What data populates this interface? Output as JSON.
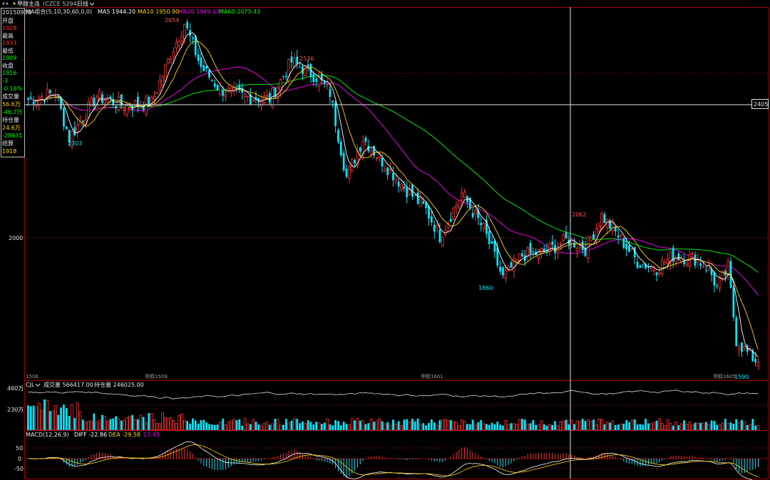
{
  "header": {
    "prefix_icon": "double-dot-icon",
    "title": "甲醇主连",
    "code": "(CZCE 5294)",
    "period": "日线",
    "period_icon": "chevron-down-icon"
  },
  "ma_legend": {
    "label": "MA组合(5,10,30,60,0,0)",
    "ma5": "MA5 1944.20",
    "ma10": "MA10 1950.90",
    "ma30": "MA30 1949.13",
    "ma60": "MA60 2073.43"
  },
  "colors": {
    "up": "#ff3232",
    "down": "#00e6ff",
    "ma5": "#ffffff",
    "ma10": "#ffd700",
    "ma30": "#ff00ff",
    "ma60": "#00ff00",
    "grid": "#8b0000",
    "frame": "#a00000"
  },
  "info_panel": {
    "date": "20150930",
    "open_label": "开盘",
    "open": "1928",
    "high_label": "最高",
    "high": "1933",
    "low_label": "最低",
    "low": "1909",
    "close_label": "收盘",
    "close": "1916",
    "change": "-3",
    "change_pct": "-0.16%",
    "volume_label": "成交量",
    "volume": "56.6万",
    "volume_change": "-46.7万",
    "oi_label": "持仓量",
    "oi": "24.6万",
    "oi_change": "-28631",
    "settle_label": "结算",
    "settle": "1918"
  },
  "price_axis": {
    "tick_2000": "2000",
    "crosshair_value": "2405"
  },
  "annotations": {
    "high_2654": "2654",
    "high_2536": "2536",
    "low_2303": "2303",
    "low_1860": "1860",
    "high_2062": "2062",
    "low_1590": "1590"
  },
  "contract_markers": {
    "m1506": "1506",
    "m1509": "甲醇1509",
    "m1601": "甲醇1601",
    "m1605": "甲醇1605"
  },
  "volume_panel": {
    "indicator": "CJL",
    "volume_text": "成交量 566417.00",
    "oi_text": "持仓量 246025.00",
    "tick_top": "460万",
    "tick_mid": "230万"
  },
  "macd_panel": {
    "label": "MACD(12,26,9)",
    "diff": "DIFF -22.86",
    "dea": "DEA -29.58",
    "macd": "13.43",
    "tick_50": "50",
    "tick_0": "0",
    "tick_m50": "-50"
  },
  "chart_data": {
    "type": "candlestick",
    "y_range": [
      1560,
      2700
    ],
    "anchor_prices": [
      {
        "day": 0,
        "price": 2420
      },
      {
        "day": 10,
        "price": 2440
      },
      {
        "day": 15,
        "price": 2300
      },
      {
        "day": 25,
        "price": 2430
      },
      {
        "day": 35,
        "price": 2400
      },
      {
        "day": 45,
        "price": 2410
      },
      {
        "day": 52,
        "price": 2560
      },
      {
        "day": 57,
        "price": 2654
      },
      {
        "day": 63,
        "price": 2520
      },
      {
        "day": 70,
        "price": 2450
      },
      {
        "day": 78,
        "price": 2430
      },
      {
        "day": 88,
        "price": 2420
      },
      {
        "day": 96,
        "price": 2536
      },
      {
        "day": 105,
        "price": 2490
      },
      {
        "day": 110,
        "price": 2440
      },
      {
        "day": 116,
        "price": 2180
      },
      {
        "day": 122,
        "price": 2300
      },
      {
        "day": 130,
        "price": 2220
      },
      {
        "day": 137,
        "price": 2150
      },
      {
        "day": 145,
        "price": 2080
      },
      {
        "day": 150,
        "price": 2000
      },
      {
        "day": 158,
        "price": 2130
      },
      {
        "day": 166,
        "price": 2020
      },
      {
        "day": 173,
        "price": 1870
      },
      {
        "day": 180,
        "price": 1940
      },
      {
        "day": 188,
        "price": 1950
      },
      {
        "day": 197,
        "price": 1990
      },
      {
        "day": 203,
        "price": 1960
      },
      {
        "day": 209,
        "price": 2062
      },
      {
        "day": 215,
        "price": 2000
      },
      {
        "day": 222,
        "price": 1920
      },
      {
        "day": 229,
        "price": 1900
      },
      {
        "day": 235,
        "price": 1940
      },
      {
        "day": 243,
        "price": 1930
      },
      {
        "day": 248,
        "price": 1900
      },
      {
        "day": 251,
        "price": 1840
      },
      {
        "day": 255,
        "price": 1900
      },
      {
        "day": 258,
        "price": 1680
      },
      {
        "day": 262,
        "price": 1640
      },
      {
        "day": 266,
        "price": 1610
      }
    ],
    "volume_range_wan": [
      0,
      460
    ],
    "macd_range": [
      -75,
      75
    ]
  }
}
